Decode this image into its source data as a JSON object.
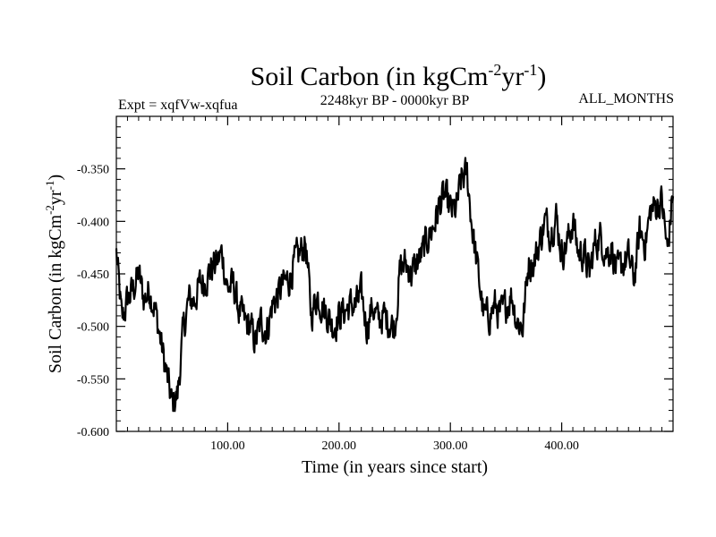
{
  "chart_data": {
    "type": "line",
    "title": {
      "main": "Soil Carbon (in kgCm",
      "sup1": "-2",
      "mid": "yr",
      "sup2": "-1",
      "end": ")"
    },
    "subtitle": "2248kyr BP - 0000kyr BP",
    "expt_label": "Expt = xqfVw-xqfua",
    "months_label": "ALL_MONTHS",
    "xlabel": "Time (in years since start)",
    "ylabel": {
      "main": "Soil Carbon (in kgCm",
      "sup1": "-2",
      "mid": "yr",
      "sup2": "-1",
      "end": ")"
    },
    "xlim": [
      0,
      500
    ],
    "ylim": [
      -0.6,
      -0.3
    ],
    "x_ticks": [
      {
        "value": 100,
        "label": "100.00"
      },
      {
        "value": 200,
        "label": "200.00"
      },
      {
        "value": 300,
        "label": "300.00"
      },
      {
        "value": 400,
        "label": "400.00"
      }
    ],
    "y_ticks": [
      {
        "value": -0.35,
        "label": "-0.350"
      },
      {
        "value": -0.4,
        "label": "-0.400"
      },
      {
        "value": -0.45,
        "label": "-0.450"
      },
      {
        "value": -0.5,
        "label": "-0.500"
      },
      {
        "value": -0.55,
        "label": "-0.550"
      },
      {
        "value": -0.6,
        "label": "-0.600"
      }
    ],
    "series": [
      {
        "name": "Soil Carbon",
        "x": [
          0,
          5,
          10,
          15,
          20,
          25,
          30,
          35,
          40,
          45,
          50,
          55,
          60,
          65,
          70,
          75,
          80,
          85,
          90,
          95,
          100,
          105,
          110,
          115,
          120,
          125,
          130,
          135,
          140,
          145,
          150,
          155,
          160,
          165,
          170,
          175,
          180,
          185,
          190,
          195,
          200,
          205,
          210,
          215,
          220,
          225,
          230,
          235,
          240,
          245,
          250,
          255,
          260,
          265,
          270,
          275,
          280,
          285,
          290,
          295,
          300,
          305,
          310,
          315,
          320,
          325,
          330,
          335,
          340,
          345,
          350,
          355,
          360,
          365,
          370,
          375,
          380,
          385,
          390,
          395,
          400,
          405,
          410,
          415,
          420,
          425,
          430,
          435,
          440,
          445,
          450,
          455,
          460,
          465,
          470,
          475,
          480,
          485,
          490,
          495,
          500
        ],
        "y": [
          -0.43,
          -0.495,
          -0.475,
          -0.465,
          -0.45,
          -0.475,
          -0.465,
          -0.485,
          -0.515,
          -0.545,
          -0.575,
          -0.565,
          -0.505,
          -0.475,
          -0.475,
          -0.46,
          -0.455,
          -0.445,
          -0.44,
          -0.43,
          -0.465,
          -0.46,
          -0.485,
          -0.495,
          -0.5,
          -0.515,
          -0.495,
          -0.505,
          -0.48,
          -0.47,
          -0.46,
          -0.455,
          -0.44,
          -0.43,
          -0.42,
          -0.49,
          -0.47,
          -0.48,
          -0.49,
          -0.5,
          -0.49,
          -0.485,
          -0.48,
          -0.48,
          -0.47,
          -0.5,
          -0.48,
          -0.495,
          -0.49,
          -0.495,
          -0.5,
          -0.445,
          -0.44,
          -0.45,
          -0.44,
          -0.43,
          -0.415,
          -0.405,
          -0.385,
          -0.375,
          -0.39,
          -0.39,
          -0.36,
          -0.355,
          -0.41,
          -0.45,
          -0.49,
          -0.49,
          -0.48,
          -0.49,
          -0.48,
          -0.47,
          -0.495,
          -0.5,
          -0.44,
          -0.44,
          -0.42,
          -0.4,
          -0.41,
          -0.395,
          -0.43,
          -0.42,
          -0.4,
          -0.43,
          -0.43,
          -0.45,
          -0.42,
          -0.415,
          -0.43,
          -0.425,
          -0.45,
          -0.44,
          -0.435,
          -0.455,
          -0.41,
          -0.42,
          -0.39,
          -0.385,
          -0.38,
          -0.43,
          -0.37
        ]
      }
    ]
  }
}
